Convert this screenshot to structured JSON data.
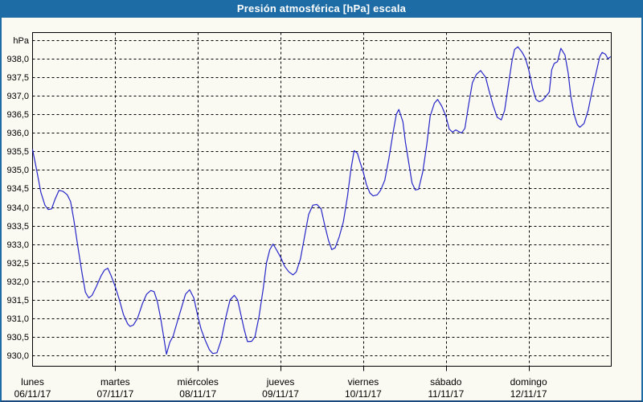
{
  "window": {
    "title": "Presión atmosférica [hPa] escala"
  },
  "colors": {
    "accent": "#1e6ca6",
    "accent_dark": "#1b4a80",
    "background": "#fbfaf2",
    "title_text": "#ffffff",
    "line": "#2626c9",
    "grid": "#000000",
    "text": "#000000"
  },
  "chart_data": {
    "type": "line",
    "title": "Presión atmosférica [hPa] escala",
    "ylabel": "hPa",
    "grid": "dashed",
    "legend": "none",
    "ylim": [
      929.7,
      938.72
    ],
    "ytick_step": 0.5,
    "ytick_values": [
      938.0,
      937.5,
      937.0,
      936.5,
      936.0,
      935.5,
      935.0,
      934.5,
      934.0,
      933.5,
      933.0,
      932.5,
      932.0,
      931.5,
      931.0,
      930.5,
      930.0
    ],
    "ytick_labels": [
      "938,0",
      "937,5",
      "937,0",
      "936,5",
      "936,0",
      "935,5",
      "935,0",
      "934,5",
      "934,0",
      "933,5",
      "933,0",
      "932,5",
      "932,0",
      "931,5",
      "931,0",
      "930,5",
      "930,0"
    ],
    "extra_top_gridline": 938.5,
    "x_axis_unit": "days",
    "x_days": [
      {
        "name": "lunes",
        "date": "06/11/17"
      },
      {
        "name": "martes",
        "date": "07/11/17"
      },
      {
        "name": "miércoles",
        "date": "08/11/17"
      },
      {
        "name": "jueves",
        "date": "09/11/17"
      },
      {
        "name": "viernes",
        "date": "10/11/17"
      },
      {
        "name": "sábado",
        "date": "11/11/17"
      },
      {
        "name": "domingo",
        "date": "12/11/17"
      }
    ],
    "series": [
      {
        "name": "presión atmosférica",
        "color": "#2626c9",
        "points": [
          [
            0.0,
            935.55
          ],
          [
            0.05,
            935.0
          ],
          [
            0.1,
            934.4
          ],
          [
            0.15,
            934.05
          ],
          [
            0.19,
            933.93
          ],
          [
            0.23,
            933.95
          ],
          [
            0.27,
            934.2
          ],
          [
            0.32,
            934.45
          ],
          [
            0.37,
            934.42
          ],
          [
            0.42,
            934.33
          ],
          [
            0.46,
            934.15
          ],
          [
            0.5,
            933.65
          ],
          [
            0.55,
            932.9
          ],
          [
            0.6,
            932.2
          ],
          [
            0.64,
            931.7
          ],
          [
            0.68,
            931.55
          ],
          [
            0.72,
            931.62
          ],
          [
            0.77,
            931.85
          ],
          [
            0.83,
            932.15
          ],
          [
            0.87,
            932.3
          ],
          [
            0.91,
            932.35
          ],
          [
            0.95,
            932.15
          ],
          [
            1.0,
            931.85
          ],
          [
            1.05,
            931.5
          ],
          [
            1.1,
            931.1
          ],
          [
            1.15,
            930.85
          ],
          [
            1.18,
            930.78
          ],
          [
            1.22,
            930.82
          ],
          [
            1.27,
            931.0
          ],
          [
            1.33,
            931.4
          ],
          [
            1.38,
            931.65
          ],
          [
            1.43,
            931.75
          ],
          [
            1.47,
            931.72
          ],
          [
            1.51,
            931.45
          ],
          [
            1.55,
            931.0
          ],
          [
            1.59,
            930.45
          ],
          [
            1.62,
            930.03
          ],
          [
            1.66,
            930.35
          ],
          [
            1.7,
            930.52
          ],
          [
            1.75,
            930.9
          ],
          [
            1.81,
            931.35
          ],
          [
            1.85,
            931.65
          ],
          [
            1.9,
            931.77
          ],
          [
            1.95,
            931.55
          ],
          [
            2.0,
            931.05
          ],
          [
            2.04,
            930.7
          ],
          [
            2.09,
            930.4
          ],
          [
            2.14,
            930.15
          ],
          [
            2.18,
            930.05
          ],
          [
            2.23,
            930.07
          ],
          [
            2.28,
            930.4
          ],
          [
            2.34,
            931.05
          ],
          [
            2.39,
            931.5
          ],
          [
            2.44,
            931.62
          ],
          [
            2.48,
            931.5
          ],
          [
            2.52,
            931.1
          ],
          [
            2.56,
            930.7
          ],
          [
            2.6,
            930.37
          ],
          [
            2.65,
            930.38
          ],
          [
            2.69,
            930.5
          ],
          [
            2.74,
            931.05
          ],
          [
            2.79,
            931.8
          ],
          [
            2.83,
            932.5
          ],
          [
            2.87,
            932.85
          ],
          [
            2.91,
            933.0
          ],
          [
            2.95,
            932.85
          ],
          [
            3.0,
            932.65
          ],
          [
            3.05,
            932.4
          ],
          [
            3.1,
            932.25
          ],
          [
            3.15,
            932.17
          ],
          [
            3.19,
            932.25
          ],
          [
            3.24,
            932.6
          ],
          [
            3.29,
            933.2
          ],
          [
            3.34,
            933.8
          ],
          [
            3.39,
            934.05
          ],
          [
            3.44,
            934.07
          ],
          [
            3.49,
            933.95
          ],
          [
            3.53,
            933.55
          ],
          [
            3.58,
            933.1
          ],
          [
            3.62,
            932.85
          ],
          [
            3.66,
            932.9
          ],
          [
            3.71,
            933.2
          ],
          [
            3.76,
            933.6
          ],
          [
            3.81,
            934.3
          ],
          [
            3.85,
            935.0
          ],
          [
            3.89,
            935.52
          ],
          [
            3.93,
            935.45
          ],
          [
            3.96,
            935.22
          ],
          [
            4.0,
            934.95
          ],
          [
            4.04,
            934.6
          ],
          [
            4.08,
            934.38
          ],
          [
            4.12,
            934.3
          ],
          [
            4.17,
            934.33
          ],
          [
            4.21,
            934.45
          ],
          [
            4.26,
            934.72
          ],
          [
            4.31,
            935.3
          ],
          [
            4.36,
            936.0
          ],
          [
            4.4,
            936.5
          ],
          [
            4.43,
            936.63
          ],
          [
            4.48,
            936.3
          ],
          [
            4.51,
            935.75
          ],
          [
            4.55,
            935.2
          ],
          [
            4.59,
            934.65
          ],
          [
            4.63,
            934.46
          ],
          [
            4.67,
            934.48
          ],
          [
            4.72,
            934.95
          ],
          [
            4.77,
            935.7
          ],
          [
            4.81,
            936.45
          ],
          [
            4.86,
            936.8
          ],
          [
            4.9,
            936.9
          ],
          [
            4.95,
            936.72
          ],
          [
            5.0,
            936.45
          ],
          [
            5.04,
            936.1
          ],
          [
            5.08,
            936.02
          ],
          [
            5.12,
            936.08
          ],
          [
            5.16,
            936.03
          ],
          [
            5.19,
            936.0
          ],
          [
            5.23,
            936.12
          ],
          [
            5.27,
            936.7
          ],
          [
            5.32,
            937.35
          ],
          [
            5.37,
            937.58
          ],
          [
            5.42,
            937.68
          ],
          [
            5.48,
            937.5
          ],
          [
            5.52,
            937.15
          ],
          [
            5.57,
            936.75
          ],
          [
            5.62,
            936.42
          ],
          [
            5.67,
            936.35
          ],
          [
            5.71,
            936.6
          ],
          [
            5.75,
            937.2
          ],
          [
            5.8,
            937.95
          ],
          [
            5.83,
            938.25
          ],
          [
            5.87,
            938.32
          ],
          [
            5.92,
            938.18
          ],
          [
            5.96,
            938.02
          ],
          [
            6.0,
            937.72
          ],
          [
            6.05,
            937.2
          ],
          [
            6.09,
            936.9
          ],
          [
            6.13,
            936.84
          ],
          [
            6.17,
            936.88
          ],
          [
            6.21,
            936.98
          ],
          [
            6.25,
            937.1
          ],
          [
            6.28,
            937.7
          ],
          [
            6.31,
            937.87
          ],
          [
            6.35,
            937.92
          ],
          [
            6.39,
            938.28
          ],
          [
            6.44,
            938.1
          ],
          [
            6.48,
            937.6
          ],
          [
            6.51,
            937.0
          ],
          [
            6.55,
            936.5
          ],
          [
            6.59,
            936.22
          ],
          [
            6.62,
            936.15
          ],
          [
            6.67,
            936.25
          ],
          [
            6.72,
            936.6
          ],
          [
            6.77,
            937.15
          ],
          [
            6.82,
            937.65
          ],
          [
            6.86,
            938.05
          ],
          [
            6.89,
            938.17
          ],
          [
            6.93,
            938.12
          ],
          [
            6.96,
            938.0
          ],
          [
            6.99,
            938.05
          ]
        ]
      }
    ]
  }
}
